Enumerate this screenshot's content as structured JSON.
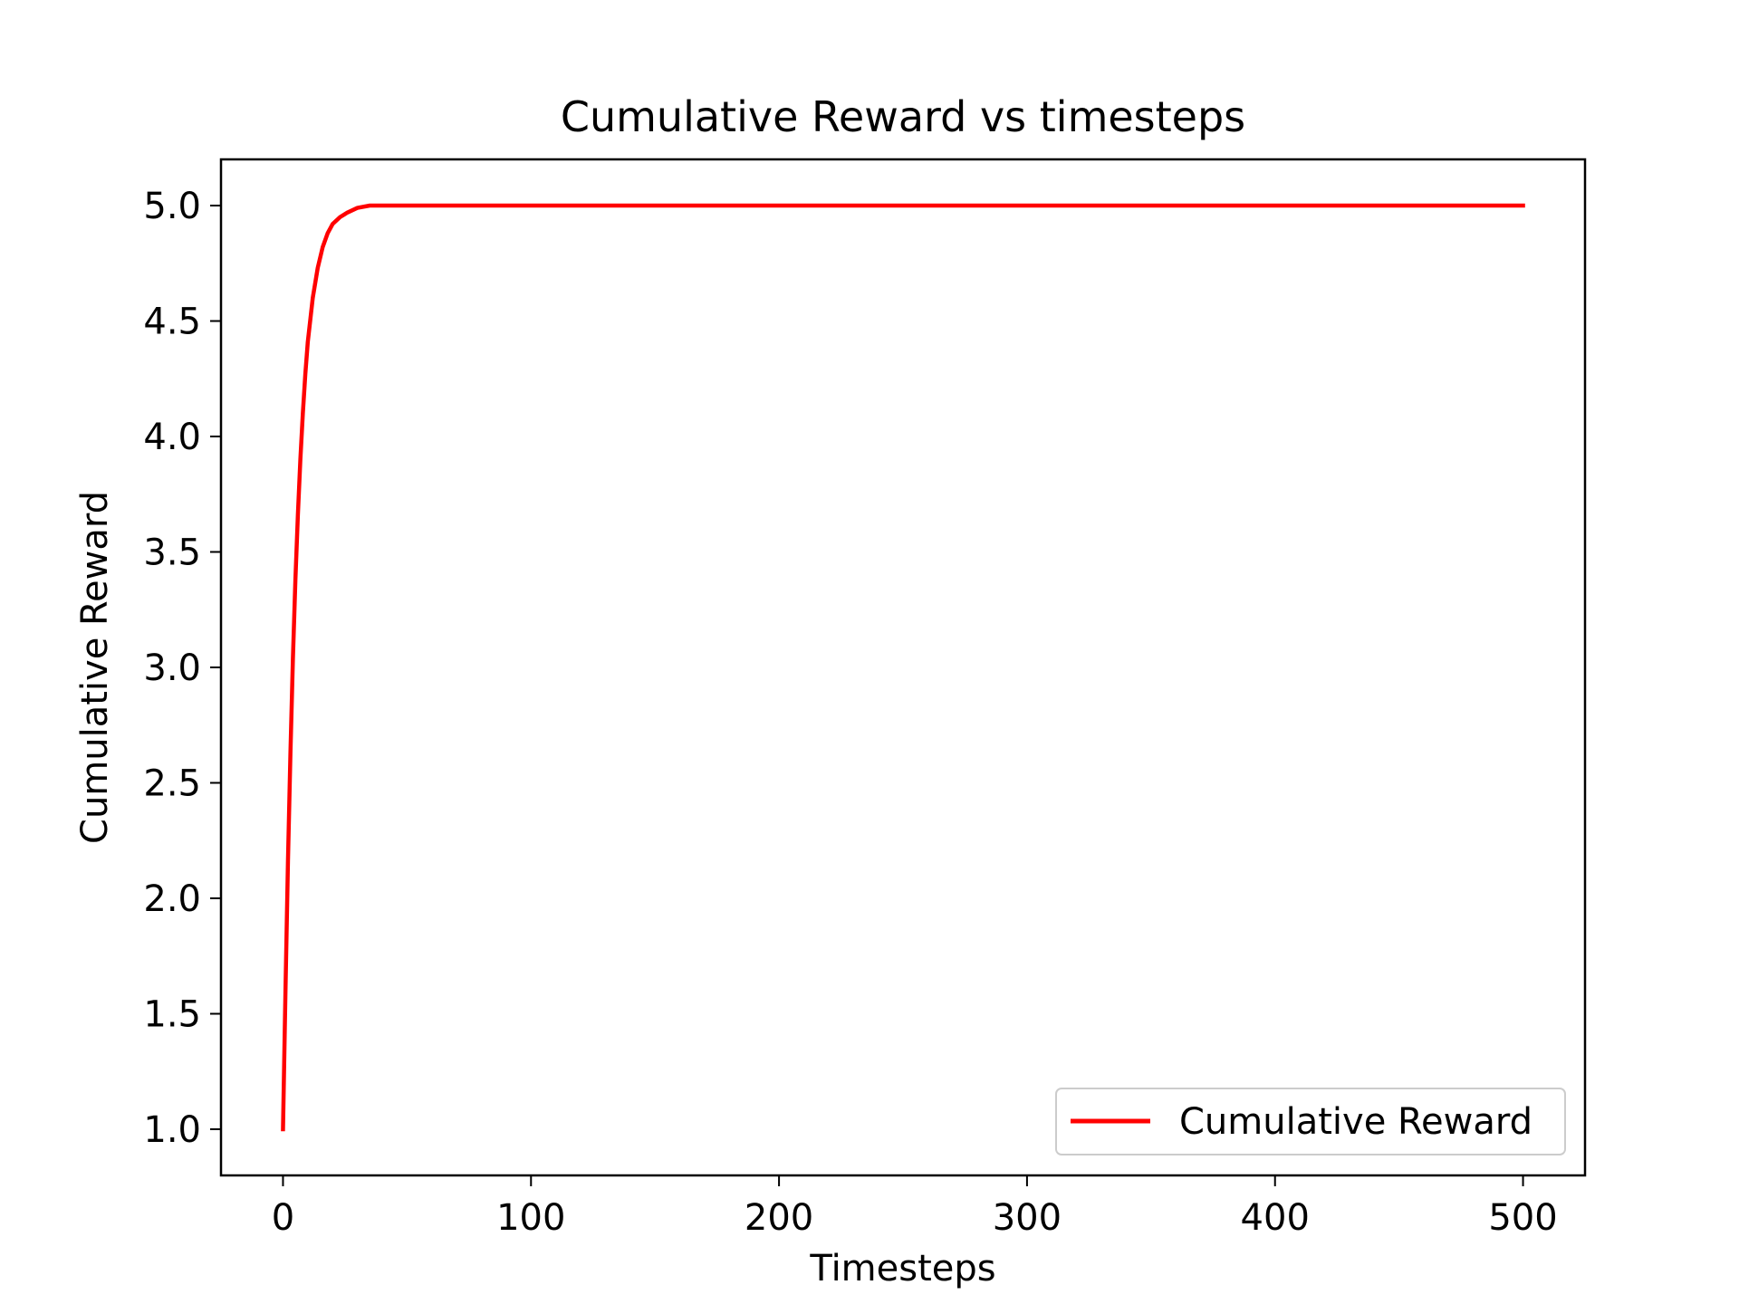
{
  "chart_data": {
    "type": "line",
    "title": "Cumulative Reward vs timesteps",
    "xlabel": "Timesteps",
    "ylabel": "Cumulative Reward",
    "xlim": [
      -25,
      525
    ],
    "ylim": [
      0.8,
      5.2
    ],
    "xticks": [
      0,
      100,
      200,
      300,
      400,
      500
    ],
    "xtick_labels": [
      "0",
      "100",
      "200",
      "300",
      "400",
      "500"
    ],
    "yticks": [
      1.0,
      1.5,
      2.0,
      2.5,
      3.0,
      3.5,
      4.0,
      4.5,
      5.0
    ],
    "ytick_labels": [
      "1.0",
      "1.5",
      "2.0",
      "2.5",
      "3.0",
      "3.5",
      "4.0",
      "4.5",
      "5.0"
    ],
    "grid": false,
    "legend_position": "lower-right",
    "series": [
      {
        "name": "Cumulative Reward",
        "color": "#ff0000",
        "x": [
          0,
          1,
          2,
          3,
          4,
          5,
          6,
          7,
          8,
          9,
          10,
          12,
          14,
          16,
          18,
          20,
          23,
          26,
          30,
          35,
          40,
          50,
          75,
          100,
          150,
          200,
          250,
          300,
          350,
          400,
          450,
          500
        ],
        "y": [
          1.0,
          1.6,
          2.16,
          2.63,
          3.04,
          3.38,
          3.66,
          3.9,
          4.1,
          4.27,
          4.41,
          4.6,
          4.73,
          4.82,
          4.88,
          4.92,
          4.95,
          4.97,
          4.99,
          5.0,
          5.0,
          5.0,
          5.0,
          5.0,
          5.0,
          5.0,
          5.0,
          5.0,
          5.0,
          5.0,
          5.0,
          5.0
        ]
      }
    ]
  }
}
